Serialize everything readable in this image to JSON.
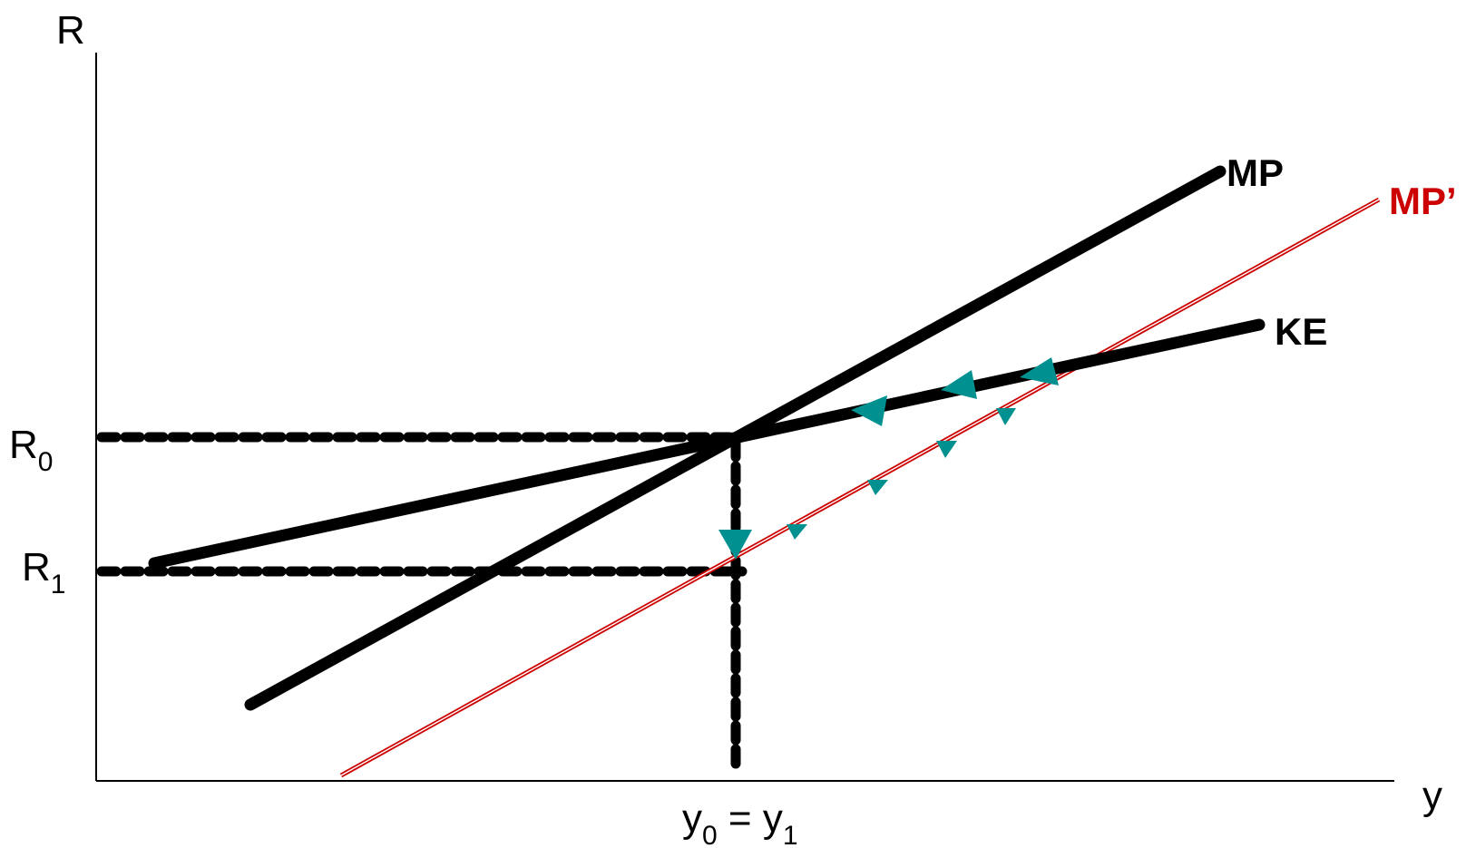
{
  "axes": {
    "y_axis_label": "R",
    "x_axis_label": "y"
  },
  "ticks": {
    "r0": {
      "base": "R",
      "sub": "0"
    },
    "r1": {
      "base": "R",
      "sub": "1"
    },
    "y_tick": {
      "y0_base": "y",
      "y0_sub": "0",
      "equals": " = ",
      "y1_base": "y",
      "y1_sub": "1"
    }
  },
  "curves": {
    "mp": {
      "label": "MP",
      "color": "#000000"
    },
    "mp_prime": {
      "label": "MP’",
      "color": "#cc0000"
    },
    "ke": {
      "label": "KE",
      "color": "#000000"
    }
  },
  "arrow_color": "#009090"
}
